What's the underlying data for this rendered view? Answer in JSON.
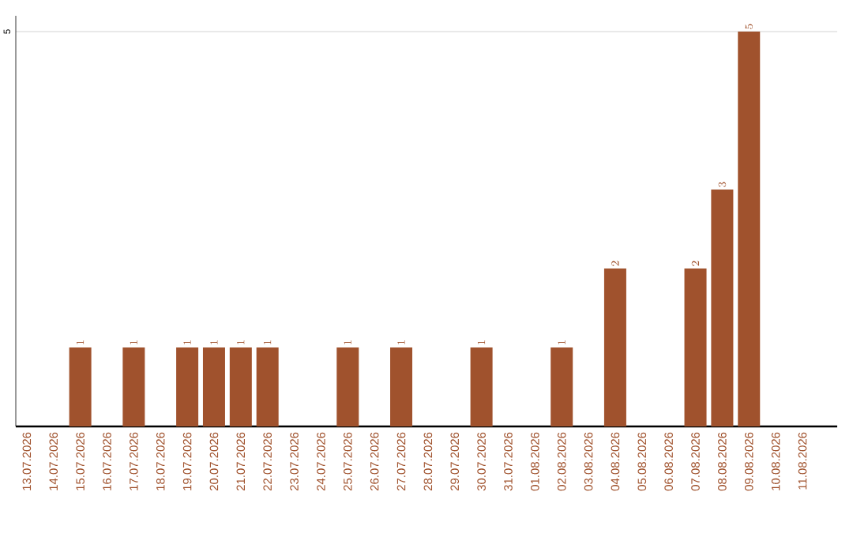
{
  "chart_data": {
    "type": "bar",
    "categories": [
      "13.07.2026",
      "14.07.2026",
      "15.07.2026",
      "16.07.2026",
      "17.07.2026",
      "18.07.2026",
      "19.07.2026",
      "20.07.2026",
      "21.07.2026",
      "22.07.2026",
      "23.07.2026",
      "24.07.2026",
      "25.07.2026",
      "26.07.2026",
      "27.07.2026",
      "28.07.2026",
      "29.07.2026",
      "30.07.2026",
      "31.07.2026",
      "01.08.2026",
      "02.08.2026",
      "03.08.2026",
      "04.08.2026",
      "05.08.2026",
      "06.08.2026",
      "07.08.2026",
      "08.08.2026",
      "09.08.2026",
      "10.08.2026",
      "11.08.2026"
    ],
    "values": [
      null,
      null,
      1,
      null,
      1,
      null,
      1,
      1,
      1,
      1,
      null,
      null,
      1,
      null,
      1,
      null,
      null,
      1,
      null,
      null,
      1,
      null,
      2,
      null,
      null,
      2,
      3,
      5,
      null,
      null
    ],
    "color": "#a0522d",
    "ylim": [
      0,
      5.2
    ],
    "yticks": [
      5
    ],
    "grid": "y",
    "data_labels": true
  }
}
